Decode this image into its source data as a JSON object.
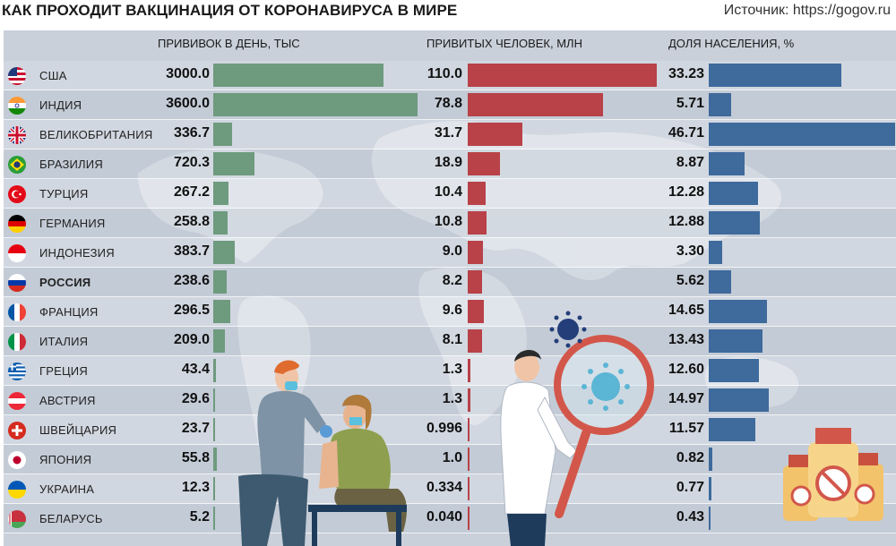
{
  "title": "КАК ПРОХОДИТ ВАКЦИНАЦИЯ ОТ КОРОНАВИРУСА В МИРЕ",
  "source": "Источник: https://gogov.ru",
  "colors": {
    "bar1": "#6e9a7e",
    "bar2": "#b84248",
    "bar3": "#3e6a9c",
    "panel": "#c9d0da"
  },
  "chart_data": {
    "type": "bar",
    "orientation": "horizontal",
    "title": "КАК ПРОХОДИТ ВАКЦИНАЦИЯ ОТ КОРОНАВИРУСА В МИРЕ",
    "categories": [
      "США",
      "ИНДИЯ",
      "ВЕЛИКОБРИТАНИЯ",
      "БРАЗИЛИЯ",
      "ТУРЦИЯ",
      "ГЕРМАНИЯ",
      "ИНДОНЕЗИЯ",
      "РОССИЯ",
      "ФРАНЦИЯ",
      "ИТАЛИЯ",
      "ГРЕЦИЯ",
      "АВСТРИЯ",
      "ШВЕЙЦАРИЯ",
      "ЯПОНИЯ",
      "УКРАИНА",
      "БЕЛАРУСЬ"
    ],
    "flags": [
      "us-flag-icon",
      "india-flag-icon",
      "uk-flag-icon",
      "brazil-flag-icon",
      "turkey-flag-icon",
      "germany-flag-icon",
      "indonesia-flag-icon",
      "russia-flag-icon",
      "france-flag-icon",
      "italy-flag-icon",
      "greece-flag-icon",
      "austria-flag-icon",
      "switzerland-flag-icon",
      "japan-flag-icon",
      "ukraine-flag-icon",
      "belarus-flag-icon"
    ],
    "series": [
      {
        "name": "ПРИВИВОК В ДЕНЬ, ТЫС",
        "values": [
          3000.0,
          3600.0,
          336.7,
          720.3,
          267.2,
          258.8,
          383.7,
          238.6,
          296.5,
          209.0,
          43.4,
          29.6,
          23.7,
          55.8,
          12.3,
          5.2
        ],
        "labels": [
          "3000.0",
          "3600.0",
          "336.7",
          "720.3",
          "267.2",
          "258.8",
          "383.7",
          "238.6",
          "296.5",
          "209.0",
          "43.4",
          "29.6",
          "23.7",
          "55.8",
          "12.3",
          "5.2"
        ],
        "max": 3600
      },
      {
        "name": "ПРИВИТЫХ ЧЕЛОВЕК, МЛН",
        "values": [
          110.0,
          78.8,
          31.7,
          18.9,
          10.4,
          10.8,
          9.0,
          8.2,
          9.6,
          8.1,
          1.3,
          1.3,
          0.996,
          1.0,
          0.334,
          0.04
        ],
        "labels": [
          "110.0",
          "78.8",
          "31.7",
          "18.9",
          "10.4",
          "10.8",
          "9.0",
          "8.2",
          "9.6",
          "8.1",
          "1.3",
          "1.3",
          "0.996",
          "1.0",
          "0.334",
          "0.040"
        ],
        "max": 110
      },
      {
        "name": "ДОЛЯ НАСЕЛЕНИЯ, %",
        "values": [
          33.23,
          5.71,
          46.71,
          8.87,
          12.28,
          12.88,
          3.3,
          5.62,
          14.65,
          13.43,
          12.6,
          14.97,
          11.57,
          0.82,
          0.77,
          0.43
        ],
        "labels": [
          "33.23",
          "5.71",
          "46.71",
          "8.87",
          "12.28",
          "12.88",
          "3.30",
          "5.62",
          "14.65",
          "13.43",
          "12.60",
          "14.97",
          "11.57",
          "0.82",
          "0.77",
          "0.43"
        ],
        "max": 46.71
      }
    ],
    "highlight": "РОССИЯ",
    "xlabel": "",
    "ylabel": ""
  }
}
